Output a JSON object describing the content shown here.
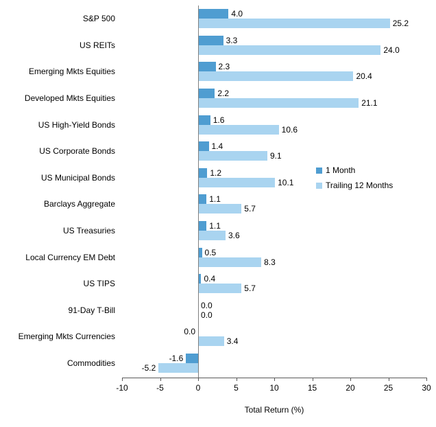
{
  "chart_data": {
    "type": "bar",
    "orientation": "horizontal",
    "title": "",
    "xlabel": "Total Return (%)",
    "ylabel": "",
    "xlim": [
      -10,
      30
    ],
    "xticks": [
      -10,
      -5,
      0,
      5,
      10,
      15,
      20,
      25,
      30
    ],
    "grid": false,
    "legend_position": "middle-right",
    "categories": [
      "S&P 500",
      "US REITs",
      "Emerging Mkts Equities",
      "Developed Mkts Equities",
      "US High-Yield Bonds",
      "US Corporate Bonds",
      "US Municipal Bonds",
      "Barclays Aggregate",
      "US Treasuries",
      "Local Currency EM Debt",
      "US TIPS",
      "91-Day T-Bill",
      "Emerging Mkts Currencies",
      "Commodities"
    ],
    "series": [
      {
        "name": "1 Month",
        "color": "#4F9DD1",
        "values": [
          4.0,
          3.3,
          2.3,
          2.2,
          1.6,
          1.4,
          1.2,
          1.1,
          1.1,
          0.5,
          0.4,
          0.0,
          0.0,
          -1.6
        ],
        "labels": [
          "4.0",
          "3.3",
          "2.3",
          "2.2",
          "1.6",
          "1.4",
          "1.2",
          "1.1",
          "1.1",
          "0.5",
          "0.4",
          "0.0",
          "0.0",
          "-1.6"
        ],
        "label_sides": [
          "right",
          "right",
          "right",
          "right",
          "right",
          "right",
          "right",
          "right",
          "right",
          "right",
          "right",
          "right",
          "left",
          "left"
        ]
      },
      {
        "name": "Trailing 12 Months",
        "color": "#A9D4F0",
        "values": [
          25.2,
          24.0,
          20.4,
          21.1,
          10.6,
          9.1,
          10.1,
          5.7,
          3.6,
          8.3,
          5.7,
          0.0,
          3.4,
          -5.2
        ],
        "labels": [
          "25.2",
          "24.0",
          "20.4",
          "21.1",
          "10.6",
          "9.1",
          "10.1",
          "5.7",
          "3.6",
          "8.3",
          "5.7",
          "0.0",
          "3.4",
          "-5.2"
        ],
        "label_sides": [
          "right",
          "right",
          "right",
          "right",
          "right",
          "right",
          "right",
          "right",
          "right",
          "right",
          "right",
          "right",
          "right",
          "left"
        ]
      }
    ]
  }
}
